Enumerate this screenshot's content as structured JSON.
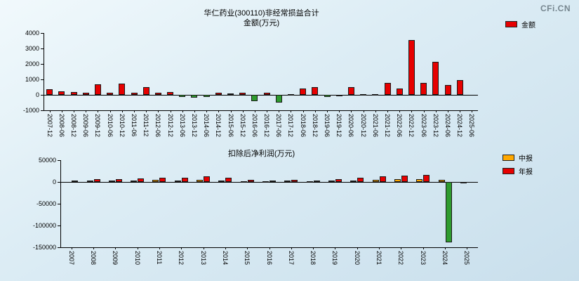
{
  "logo": {
    "text": "CFi.CN"
  },
  "chart_data": [
    {
      "type": "bar",
      "title": "华仁药业(300110)非经常损益合计",
      "subtitle": "金额(万元)",
      "legend_position": "top-right",
      "grid": false,
      "negative_color": "#2e9b2e",
      "legend": [
        {
          "label": "金额",
          "color": "#e60000"
        }
      ],
      "categories": [
        "2007-12",
        "2008-06",
        "2008-12",
        "2009-06",
        "2009-12",
        "2010-06",
        "2010-12",
        "2011-06",
        "2011-12",
        "2012-06",
        "2012-12",
        "2013-06",
        "2013-12",
        "2014-06",
        "2014-12",
        "2015-06",
        "2015-12",
        "2016-06",
        "2016-12",
        "2017-06",
        "2017-12",
        "2018-06",
        "2018-12",
        "2019-06",
        "2019-12",
        "2020-06",
        "2020-12",
        "2021-06",
        "2021-12",
        "2022-06",
        "2022-12",
        "2023-06",
        "2023-12",
        "2024-06",
        "2024-12",
        "2025-06"
      ],
      "values": [
        350,
        250,
        180,
        120,
        700,
        130,
        720,
        150,
        480,
        120,
        200,
        -120,
        -180,
        -130,
        120,
        80,
        130,
        -420,
        120,
        -480,
        60,
        420,
        480,
        -130,
        -100,
        480,
        60,
        40,
        780,
        420,
        3560,
        780,
        2120,
        620,
        950,
        null
      ],
      "ylim": [
        -1000,
        4000
      ],
      "yticks": [
        -1000,
        0,
        1000,
        2000,
        3000,
        4000
      ]
    },
    {
      "type": "bar",
      "title": "扣除后净利润(万元)",
      "legend_position": "top-right",
      "grid": false,
      "negative_color": "#2e9b2e",
      "legend": [
        {
          "label": "中报",
          "color": "#ffa800"
        },
        {
          "label": "年报",
          "color": "#e60000"
        }
      ],
      "categories": [
        "2007",
        "2008",
        "2009",
        "2010",
        "2011",
        "2012",
        "2013",
        "2014",
        "2015",
        "2016",
        "2017",
        "2018",
        "2019",
        "2020",
        "2021",
        "2022",
        "2023",
        "2024",
        "2025"
      ],
      "series": [
        {
          "name": "中报",
          "color": "#ffa800",
          "values": [
            null,
            2500,
            3000,
            4000,
            5000,
            4000,
            5000,
            4000,
            2000,
            2000,
            2500,
            2000,
            2500,
            4000,
            5000,
            6000,
            7000,
            5500,
            -3000
          ]
        },
        {
          "name": "年报",
          "color": "#e60000",
          "values": [
            3000,
            6000,
            7000,
            8000,
            9000,
            10000,
            13000,
            10000,
            5000,
            4000,
            5000,
            4000,
            6000,
            9000,
            13000,
            14000,
            17000,
            -138000,
            null
          ]
        }
      ],
      "ylim": [
        -150000,
        50000
      ],
      "yticks": [
        -150000,
        -100000,
        -50000,
        0,
        50000
      ]
    }
  ]
}
